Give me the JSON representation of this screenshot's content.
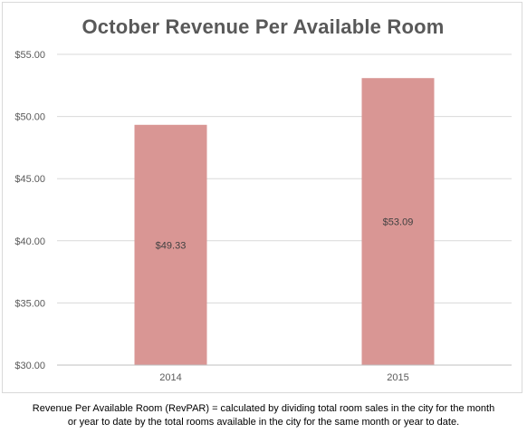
{
  "chart_data": {
    "type": "bar",
    "title": "October Revenue Per Available Room",
    "categories": [
      "2014",
      "2015"
    ],
    "values": [
      49.33,
      53.09
    ],
    "data_labels": [
      "$49.33",
      "$53.09"
    ],
    "ylim": [
      30,
      55
    ],
    "yticks": [
      30,
      35,
      40,
      45,
      50,
      55
    ],
    "ytick_labels": [
      "$30.00",
      "$35.00",
      "$40.00",
      "$45.00",
      "$50.00",
      "$55.00"
    ],
    "grid": true,
    "bar_color": "#d99694",
    "grid_color": "#d9d9d9"
  },
  "footnote": {
    "line1": "Revenue Per Available Room (RevPAR) = calculated by dividing total room sales in the city for the month",
    "line2": "or year to date by the total rooms available in the city for the same month or year to date."
  }
}
